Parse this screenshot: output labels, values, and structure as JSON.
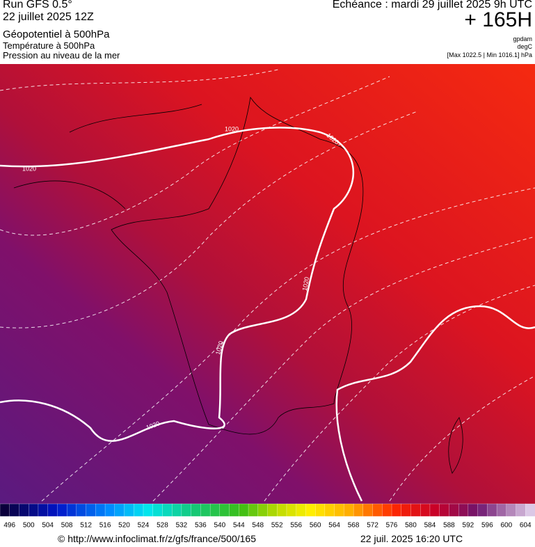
{
  "header": {
    "run": "Run GFS 0.5°",
    "date": "22 juillet 2025 12Z",
    "field1": "Géopotentiel à 500hPa",
    "field2": "Température à 500hPa",
    "field3": "Pression au niveau de la mer",
    "echeance": "Echéance : mardi 29 juillet 2025 9h UTC",
    "lead": "+ 165H",
    "unit1": "gpdam",
    "unit2": "degC",
    "range": "[Max 1022.5 | Min 1016.1] hPa"
  },
  "map": {
    "isobar_labels": [
      "1020",
      "1020",
      "1020",
      "1020",
      "1020",
      "1020"
    ]
  },
  "colorbar": {
    "ticks": [
      496,
      500,
      504,
      508,
      512,
      516,
      520,
      524,
      528,
      532,
      536,
      540,
      544,
      548,
      552,
      556,
      560,
      564,
      568,
      572,
      576,
      580,
      584,
      588,
      592,
      596,
      600,
      604
    ]
  },
  "footer": {
    "url": "© http://www.infoclimat.fr/z/gfs/france/500/165",
    "stamp": "22 juil. 2025 16:20 UTC"
  }
}
